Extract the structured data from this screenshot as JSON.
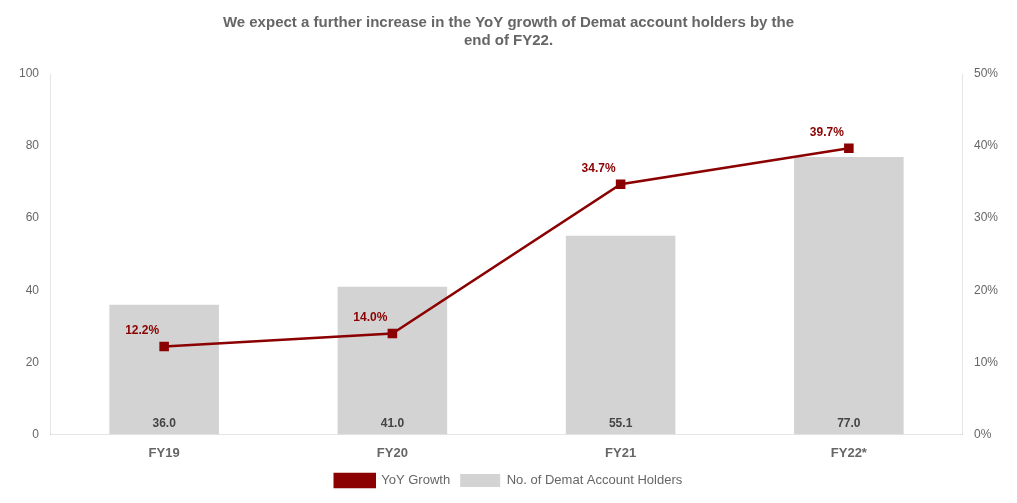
{
  "chart_data": {
    "type": "bar",
    "title": "We expect a further increase in the YoY growth of Demat account holders by the\nend of FY22.",
    "categories": [
      "FY19",
      "FY20",
      "FY21",
      "FY22*"
    ],
    "series": [
      {
        "name": "No. of Demat Account Holders",
        "type": "bar",
        "color": "#d3d3d3",
        "values": [
          36.0,
          41.0,
          55.1,
          77.0
        ],
        "value_labels": [
          "36.0",
          "41.0",
          "55.1",
          "77.0"
        ],
        "data_labels": true
      },
      {
        "name": "YoY Growth",
        "type": "line",
        "color": "#8b0000",
        "marker": "square",
        "axis": "y2",
        "values": [
          12.2,
          14.0,
          34.7,
          39.7
        ],
        "value_labels": [
          "12.2%",
          "14.0%",
          "34.7%",
          "39.7%"
        ],
        "data_labels": true
      }
    ],
    "ylim": [
      0,
      100
    ],
    "yticks": [
      0,
      20,
      40,
      60,
      80,
      100
    ],
    "y2lim": [
      0,
      50
    ],
    "y2ticks": [
      {
        "value": 0,
        "label": "0%"
      },
      {
        "value": 10,
        "label": "10%"
      },
      {
        "value": 20,
        "label": "20%"
      },
      {
        "value": 30,
        "label": "30%"
      },
      {
        "value": 40,
        "label": "40%"
      },
      {
        "value": 50,
        "label": "50%"
      }
    ],
    "grid": false,
    "legend": "bottom"
  }
}
